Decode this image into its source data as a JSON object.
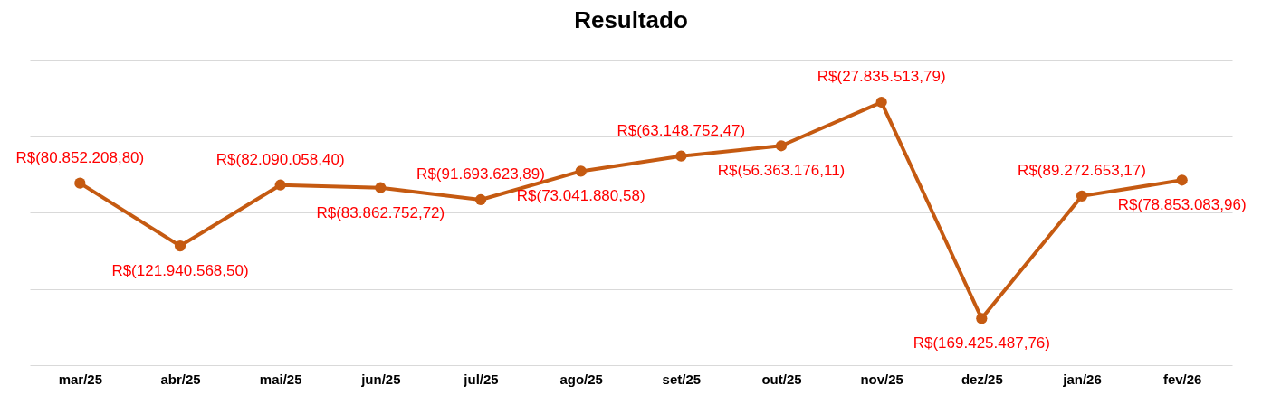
{
  "chart_data": {
    "type": "line",
    "title": "Resultado",
    "categories": [
      "mar/25",
      "abr/25",
      "mai/25",
      "jun/25",
      "jul/25",
      "ago/25",
      "set/25",
      "out/25",
      "nov/25",
      "dez/25",
      "jan/26",
      "fev/26"
    ],
    "series": [
      {
        "color": "#c55a11",
        "values": [
          -80852208.8,
          -121940568.5,
          -82090058.4,
          -83862752.72,
          -91693623.89,
          -73041880.58,
          -63148752.47,
          -56363176.11,
          -27835513.79,
          -169425487.76,
          -89272653.17,
          -78853083.96
        ],
        "value_labels": [
          "R$(80.852.208,80)",
          "R$(121.940.568,50)",
          "R$(82.090.058,40)",
          "R$(83.862.752,72)",
          "R$(91.693.623,89)",
          "R$(73.041.880,58)",
          "R$(63.148.752,47)",
          "R$(56.363.176,11)",
          "R$(27.835.513,79)",
          "R$(169.425.487,76)",
          "R$(89.272.653,17)",
          "R$(78.853.083,96)"
        ]
      }
    ],
    "ylim": [
      -200000000,
      0
    ],
    "yticks": [
      {
        "value": -200000000,
        "label": null
      },
      {
        "value": -150000000,
        "label": null
      },
      {
        "value": -100000000,
        "label": null
      },
      {
        "value": -50000000,
        "label": null
      },
      {
        "value": 0,
        "label": null
      }
    ],
    "grid": "y",
    "marker": "circle",
    "line_style": "solid",
    "tick_labels": "x"
  }
}
